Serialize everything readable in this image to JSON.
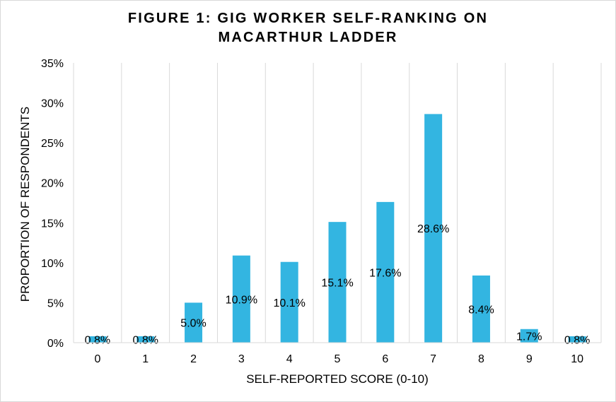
{
  "chart_data": {
    "type": "bar",
    "title_lines": [
      "FIGURE 1: GIG WORKER SELF-RANKING ON",
      "MACARTHUR LADDER"
    ],
    "xlabel": "SELF-REPORTED SCORE (0-10)",
    "ylabel": "PROPORTION OF RESPONDENTS",
    "categories": [
      "0",
      "1",
      "2",
      "3",
      "4",
      "5",
      "6",
      "7",
      "8",
      "9",
      "10"
    ],
    "values": [
      0.8,
      0.8,
      5.0,
      10.9,
      10.1,
      15.1,
      17.6,
      28.6,
      8.4,
      1.7,
      0.8
    ],
    "data_labels": [
      "0.8%",
      "0.8%",
      "5.0%",
      "10.9%",
      "10.1%",
      "15.1%",
      "17.6%",
      "28.6%",
      "8.4%",
      "1.7%",
      "0.8%"
    ],
    "ylim": [
      0,
      35
    ],
    "yticks": [
      0,
      5,
      10,
      15,
      20,
      25,
      30,
      35
    ],
    "ytick_labels": [
      "0%",
      "5%",
      "10%",
      "15%",
      "20%",
      "25%",
      "30%",
      "35%"
    ],
    "grid": "vertical",
    "legend": "none",
    "bar_color": "#33b5e1",
    "grid_color": "#d9d9d9"
  }
}
